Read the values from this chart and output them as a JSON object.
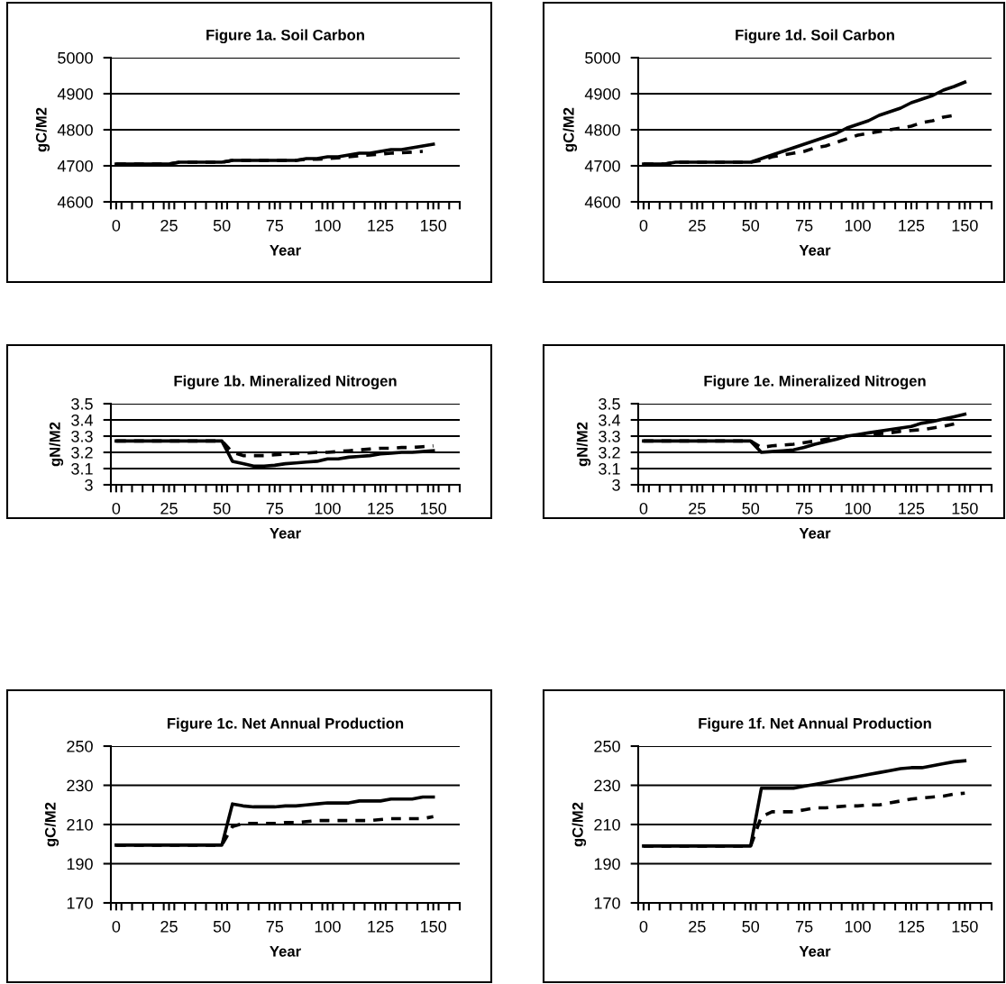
{
  "chart_data": [
    {
      "type": "line",
      "title": "Figure 1a. Soil Carbon",
      "xlabel": "Year",
      "ylabel": "gC/M2",
      "x": [
        0,
        5,
        10,
        15,
        20,
        25,
        30,
        35,
        40,
        45,
        50,
        55,
        60,
        65,
        70,
        75,
        80,
        85,
        90,
        95,
        100,
        105,
        110,
        115,
        120,
        125,
        130,
        135,
        140,
        145,
        150
      ],
      "xlim": [
        -2.5,
        162.5
      ],
      "ylim": [
        4600,
        5000
      ],
      "yticks": [
        4600,
        4700,
        4800,
        4900,
        5000
      ],
      "grid": "y",
      "xticks": [
        0,
        25,
        50,
        75,
        100,
        125,
        150
      ],
      "series": [
        {
          "color": "#000000",
          "line_style": "solid",
          "values": [
            4705,
            4705,
            4705,
            4705,
            4705,
            4705,
            4710,
            4710,
            4710,
            4710,
            4710,
            4715,
            4715,
            4715,
            4715,
            4715,
            4715,
            4715,
            4720,
            4720,
            4725,
            4725,
            4730,
            4735,
            4735,
            4740,
            4745,
            4745,
            4750,
            4755,
            4760
          ]
        },
        {
          "color": "#000000",
          "line_style": "dashed",
          "values": [
            4705,
            4705,
            4705,
            4705,
            4705,
            4705,
            4710,
            4710,
            4710,
            4710,
            4710,
            4715,
            4715,
            4715,
            4715,
            4715,
            4715,
            4715,
            4718,
            4718,
            4720,
            4722,
            4725,
            4728,
            4730,
            4732,
            4735,
            4736,
            4738,
            4740,
            null
          ]
        }
      ]
    },
    {
      "type": "line",
      "title": "Figure 1d. Soil Carbon",
      "xlabel": "Year",
      "ylabel": "gC/M2",
      "x": [
        0,
        5,
        10,
        15,
        20,
        25,
        30,
        35,
        40,
        45,
        50,
        55,
        60,
        65,
        70,
        75,
        80,
        85,
        90,
        95,
        100,
        105,
        110,
        115,
        120,
        125,
        130,
        135,
        140,
        145,
        150
      ],
      "xlim": [
        -2.5,
        162.5
      ],
      "ylim": [
        4600,
        5000
      ],
      "yticks": [
        4600,
        4700,
        4800,
        4900,
        5000
      ],
      "grid": "y",
      "xticks": [
        0,
        25,
        50,
        75,
        100,
        125,
        150
      ],
      "series": [
        {
          "color": "#000000",
          "line_style": "solid",
          "values": [
            4705,
            4705,
            4705,
            4710,
            4710,
            4710,
            4710,
            4710,
            4710,
            4710,
            4710,
            4720,
            4730,
            4740,
            4750,
            4760,
            4770,
            4780,
            4790,
            4805,
            4815,
            4825,
            4840,
            4850,
            4860,
            4875,
            4885,
            4895,
            4910,
            4920,
            4932
          ]
        },
        {
          "color": "#000000",
          "line_style": "dashed",
          "values": [
            4705,
            4705,
            4705,
            4710,
            4710,
            4710,
            4710,
            4710,
            4710,
            4710,
            4710,
            4715,
            4725,
            4730,
            4735,
            4740,
            4750,
            4755,
            4765,
            4775,
            4785,
            4790,
            4795,
            4800,
            4805,
            4810,
            4820,
            4825,
            4835,
            4840,
            null
          ]
        }
      ]
    },
    {
      "type": "line",
      "title": "Figure 1b. Mineralized Nitrogen",
      "xlabel": "Year",
      "ylabel": "gN/M2",
      "x": [
        0,
        5,
        10,
        15,
        20,
        25,
        30,
        35,
        40,
        45,
        50,
        55,
        60,
        65,
        70,
        75,
        80,
        85,
        90,
        95,
        100,
        105,
        110,
        115,
        120,
        125,
        130,
        135,
        140,
        145,
        150
      ],
      "xlim": [
        -2.5,
        162.5
      ],
      "ylim": [
        3,
        3.5
      ],
      "yticks": [
        3,
        3.1,
        3.2,
        3.3,
        3.4,
        3.5
      ],
      "grid": "y",
      "xticks": [
        0,
        25,
        50,
        75,
        100,
        125,
        150
      ],
      "series": [
        {
          "color": "#000000",
          "line_style": "solid",
          "values": [
            3.27,
            3.27,
            3.27,
            3.27,
            3.27,
            3.27,
            3.27,
            3.27,
            3.27,
            3.27,
            3.27,
            3.145,
            3.13,
            3.115,
            3.115,
            3.12,
            3.13,
            3.135,
            3.14,
            3.145,
            3.16,
            3.16,
            3.17,
            3.175,
            3.18,
            3.19,
            3.195,
            3.2,
            3.2,
            3.205,
            3.21
          ]
        },
        {
          "color": "#000000",
          "line_style": "dashed",
          "values": [
            3.27,
            3.27,
            3.27,
            3.27,
            3.27,
            3.27,
            3.27,
            3.27,
            3.27,
            3.27,
            3.27,
            3.2,
            3.18,
            3.18,
            3.18,
            3.185,
            3.19,
            3.195,
            3.195,
            3.2,
            3.2,
            3.205,
            3.21,
            3.215,
            3.22,
            3.225,
            3.225,
            3.23,
            3.23,
            3.235,
            3.24
          ]
        }
      ]
    },
    {
      "type": "line",
      "title": "Figure 1e. Mineralized Nitrogen",
      "xlabel": "Year",
      "ylabel": "gN/M2",
      "x": [
        0,
        5,
        10,
        15,
        20,
        25,
        30,
        35,
        40,
        45,
        50,
        55,
        60,
        65,
        70,
        75,
        80,
        85,
        90,
        95,
        100,
        105,
        110,
        115,
        120,
        125,
        130,
        135,
        140,
        145,
        150
      ],
      "xlim": [
        -2.5,
        162.5
      ],
      "ylim": [
        3,
        3.5
      ],
      "yticks": [
        3,
        3.1,
        3.2,
        3.3,
        3.4,
        3.5
      ],
      "grid": "y",
      "xticks": [
        0,
        25,
        50,
        75,
        100,
        125,
        150
      ],
      "series": [
        {
          "color": "#000000",
          "line_style": "solid",
          "values": [
            3.27,
            3.27,
            3.27,
            3.27,
            3.27,
            3.27,
            3.27,
            3.27,
            3.27,
            3.27,
            3.27,
            3.2,
            3.205,
            3.21,
            3.215,
            3.23,
            3.25,
            3.265,
            3.28,
            3.3,
            3.31,
            3.32,
            3.33,
            3.34,
            3.35,
            3.36,
            3.38,
            3.39,
            3.405,
            3.42,
            3.435
          ]
        },
        {
          "color": "#000000",
          "line_style": "dashed",
          "values": [
            3.27,
            3.27,
            3.27,
            3.27,
            3.27,
            3.27,
            3.27,
            3.27,
            3.27,
            3.27,
            3.27,
            3.23,
            3.24,
            3.245,
            3.25,
            3.26,
            3.27,
            3.28,
            3.29,
            3.3,
            3.305,
            3.31,
            3.315,
            3.32,
            3.33,
            3.335,
            3.34,
            3.35,
            3.36,
            3.375,
            null
          ]
        }
      ]
    },
    {
      "type": "line",
      "title": "Figure 1c. Net Annual Production",
      "xlabel": "Year",
      "ylabel": "gC/M2",
      "x": [
        0,
        5,
        10,
        15,
        20,
        25,
        30,
        35,
        40,
        45,
        50,
        55,
        60,
        65,
        70,
        75,
        80,
        85,
        90,
        95,
        100,
        105,
        110,
        115,
        120,
        125,
        130,
        135,
        140,
        145,
        150
      ],
      "xlim": [
        -2.5,
        162.5
      ],
      "ylim": [
        170,
        250
      ],
      "yticks": [
        170,
        190,
        210,
        230,
        250
      ],
      "grid": "y",
      "xticks": [
        0,
        25,
        50,
        75,
        100,
        125,
        150
      ],
      "series": [
        {
          "color": "#000000",
          "line_style": "solid",
          "values": [
            199.5,
            199.5,
            199.5,
            199.5,
            199.5,
            199.5,
            199.5,
            199.5,
            199.5,
            199.5,
            199.5,
            220.5,
            219.5,
            219,
            219,
            219,
            219.5,
            219.5,
            220,
            220.5,
            221,
            221,
            221,
            222,
            222,
            222,
            223,
            223,
            223,
            224,
            224
          ]
        },
        {
          "color": "#000000",
          "line_style": "dashed",
          "values": [
            199.5,
            199.5,
            199.5,
            199.5,
            199.5,
            199.5,
            199.5,
            199.5,
            199.5,
            199.5,
            199.5,
            209,
            210.5,
            210.5,
            210.5,
            210.5,
            211,
            211,
            211.5,
            212,
            212,
            212,
            212,
            212,
            212,
            212.5,
            213,
            213,
            213,
            213,
            214
          ]
        }
      ]
    },
    {
      "type": "line",
      "title": "Figure 1f. Net Annual Production",
      "xlabel": "Year",
      "ylabel": "gC/M2",
      "x": [
        0,
        5,
        10,
        15,
        20,
        25,
        30,
        35,
        40,
        45,
        50,
        55,
        60,
        65,
        70,
        75,
        80,
        85,
        90,
        95,
        100,
        105,
        110,
        115,
        120,
        125,
        130,
        135,
        140,
        145,
        150
      ],
      "xlim": [
        -2.5,
        162.5
      ],
      "ylim": [
        170,
        250
      ],
      "yticks": [
        170,
        190,
        210,
        230,
        250
      ],
      "grid": "y",
      "xticks": [
        0,
        25,
        50,
        75,
        100,
        125,
        150
      ],
      "series": [
        {
          "color": "#000000",
          "line_style": "solid",
          "values": [
            199,
            199,
            199,
            199,
            199,
            199,
            199,
            199,
            199,
            199,
            199,
            228.5,
            228.5,
            228.5,
            228.5,
            229.5,
            230.5,
            231.5,
            232.5,
            233.5,
            234.5,
            235.5,
            236.5,
            237.5,
            238.5,
            239,
            239,
            240,
            241,
            242,
            242.5
          ]
        },
        {
          "color": "#000000",
          "line_style": "dashed",
          "values": [
            199,
            199,
            199,
            199,
            199,
            199,
            199,
            199,
            199,
            199,
            199,
            214,
            216.5,
            216.5,
            216.5,
            217.5,
            218.5,
            218.5,
            219,
            219.5,
            219.5,
            220,
            220,
            221,
            222,
            223,
            223.5,
            224,
            224.5,
            225.5,
            226
          ]
        }
      ]
    }
  ]
}
